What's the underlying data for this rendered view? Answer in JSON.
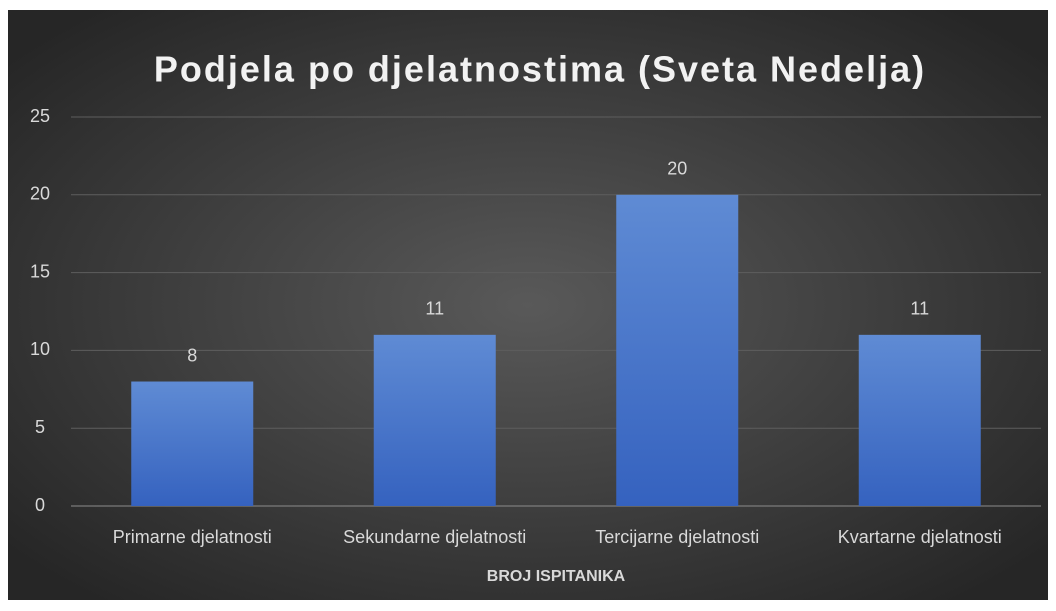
{
  "chart_data": {
    "type": "bar",
    "title": "Podjela po djelatnostima (Sveta Nedelja)",
    "x_label": "BROJ ISPITANIKA",
    "categories": [
      "Primarne djelatnosti",
      "Sekundarne djelatnosti",
      "Tercijarne djelatnosti",
      "Kvartarne djelatnosti"
    ],
    "values": [
      8,
      11,
      20,
      11
    ],
    "color": "#4472c4",
    "ylim": [
      0,
      25
    ],
    "yticks": [
      0,
      5,
      10,
      15,
      20,
      25
    ],
    "grid": true
  }
}
